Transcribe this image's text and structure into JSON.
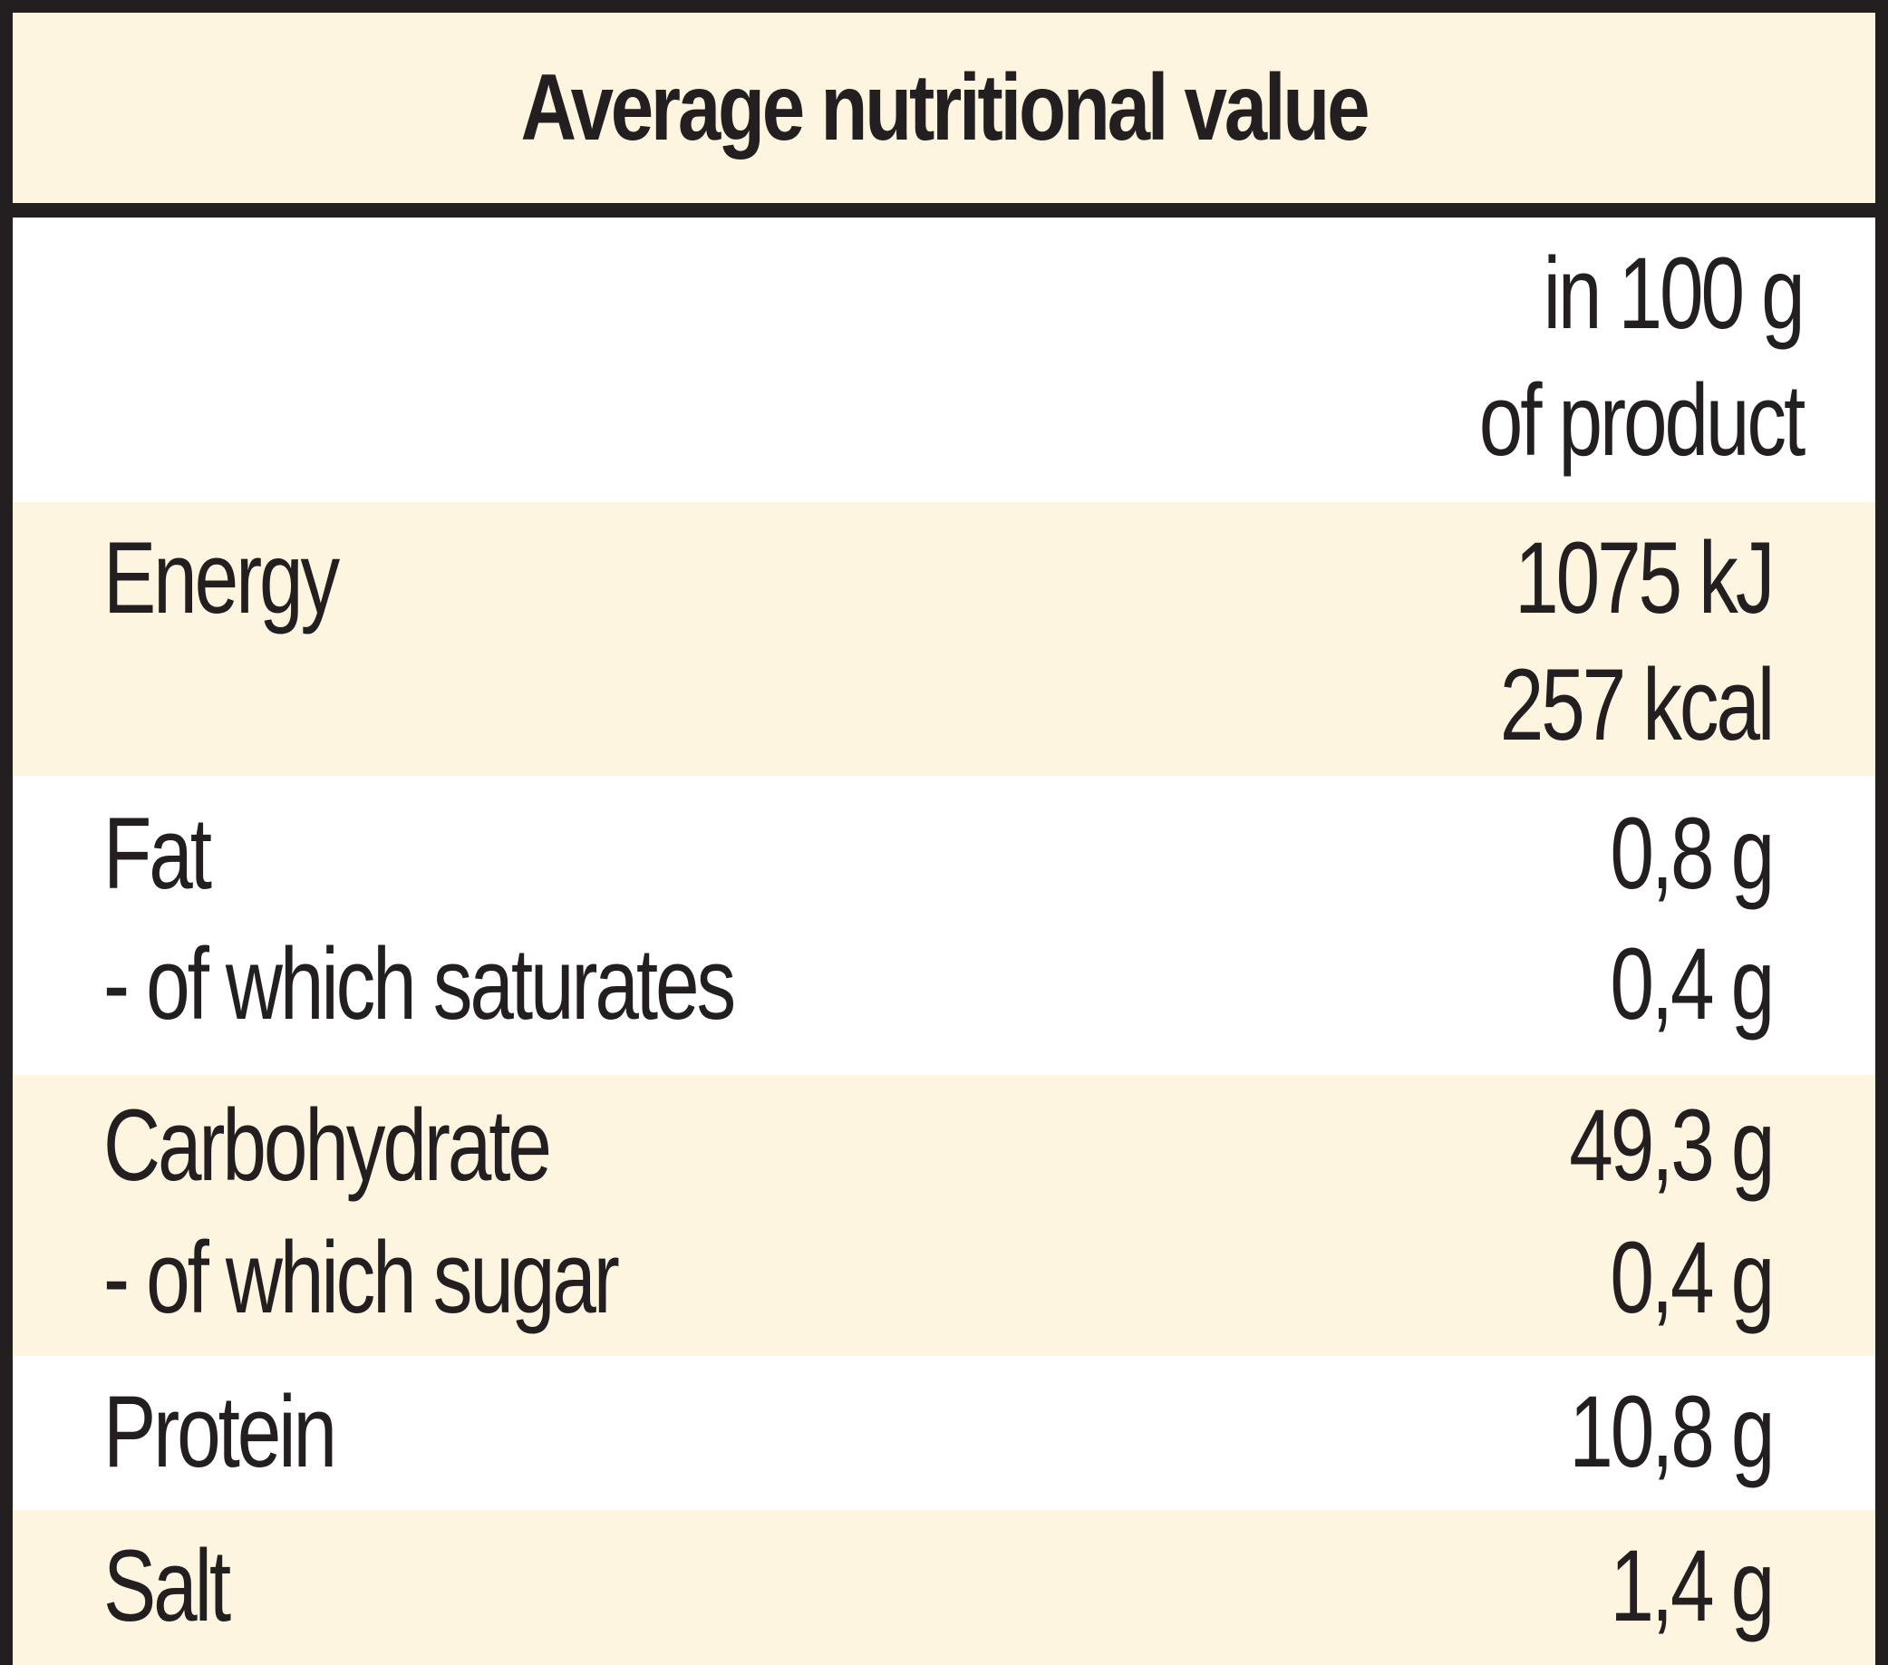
{
  "title": "Average nutritional value",
  "column_header": {
    "line1": "in 100 g",
    "line2": "of product"
  },
  "rows": [
    {
      "label": "Energy",
      "values": [
        "1075 kJ",
        "257 kcal"
      ]
    },
    {
      "label": "Fat",
      "values": [
        "0,8 g"
      ]
    },
    {
      "label": "- of which saturates",
      "values": [
        "0,4 g"
      ]
    },
    {
      "label": "Carbohydrate",
      "values": [
        "49,3 g"
      ]
    },
    {
      "label": "- of which sugar",
      "values": [
        "0,4 g"
      ]
    },
    {
      "label": "Protein",
      "values": [
        "10,8 g"
      ]
    },
    {
      "label": "Salt",
      "values": [
        "1,4 g"
      ]
    }
  ],
  "colors": {
    "border": "#231f20",
    "shade": "#fdf5e0",
    "text": "#231f20"
  }
}
